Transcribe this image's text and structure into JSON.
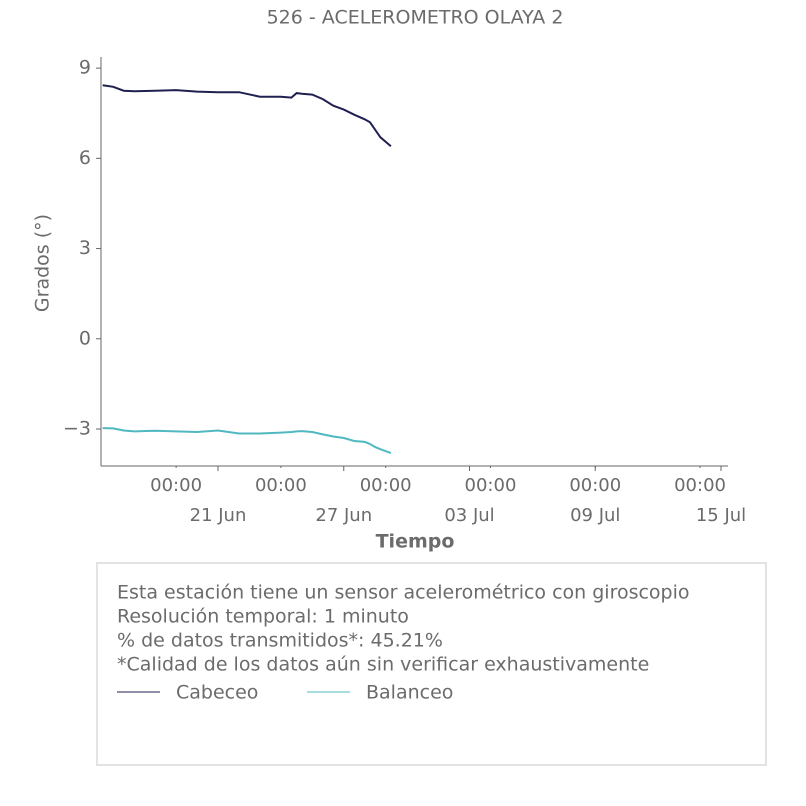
{
  "chart_data": {
    "type": "line",
    "title": "526 - ACELEROMETRO OLAYA 2",
    "x_label": "Tiempo",
    "y_label": "Grados (°)",
    "x": [
      "15 Jun 12:00",
      "16 Jun 00:00",
      "16 Jun 12:00",
      "17 Jun 00:00",
      "18 Jun 00:00",
      "19 Jun 00:00",
      "20 Jun 00:00",
      "21 Jun 00:00",
      "22 Jun 00:00",
      "23 Jun 00:00",
      "24 Jun 00:00",
      "24 Jun 12:00",
      "24 Jun 18:00",
      "25 Jun 00:00",
      "25 Jun 12:00",
      "26 Jun 00:00",
      "26 Jun 12:00",
      "27 Jun 00:00",
      "27 Jun 12:00",
      "28 Jun 00:00",
      "28 Jun 06:00",
      "28 Jun 12:00",
      "28 Jun 18:00",
      "29 Jun 06:00"
    ],
    "series": [
      {
        "name": "Cabeceo",
        "color": "#1f2050",
        "values": [
          8.43,
          8.38,
          8.25,
          8.23,
          8.25,
          8.27,
          8.22,
          8.2,
          8.2,
          8.05,
          8.05,
          8.02,
          8.17,
          8.15,
          8.12,
          7.97,
          7.75,
          7.62,
          7.45,
          7.3,
          7.2,
          6.95,
          6.7,
          6.4
        ]
      },
      {
        "name": "Balanceo",
        "color": "#4fb8c0",
        "values": [
          -2.97,
          -2.98,
          -3.05,
          -3.08,
          -3.06,
          -3.08,
          -3.1,
          -3.05,
          -3.15,
          -3.15,
          -3.12,
          -3.1,
          -3.08,
          -3.07,
          -3.1,
          -3.18,
          -3.25,
          -3.3,
          -3.4,
          -3.43,
          -3.5,
          -3.6,
          -3.67,
          -3.8
        ]
      }
    ],
    "xlim": [
      "15 Jun 10:00",
      "15 Jul 08:00"
    ],
    "xticks": [
      {
        "value": "19 Jun 00:00",
        "label": "00:00"
      },
      {
        "value": "24 Jun 00:00",
        "label": "00:00"
      },
      {
        "value": "29 Jun 00:00",
        "label": "00:00"
      },
      {
        "value": "04 Jul 00:00",
        "label": "00:00"
      },
      {
        "value": "09 Jul 00:00",
        "label": "00:00"
      },
      {
        "value": "14 Jul 00:00",
        "label": "00:00"
      }
    ],
    "xticks_minor": [
      {
        "value": "21 Jun 00:00",
        "label": "21 Jun"
      },
      {
        "value": "27 Jun 00:00",
        "label": "27 Jun"
      },
      {
        "value": "03 Jul 00:00",
        "label": "03 Jul"
      },
      {
        "value": "09 Jul 00:00",
        "label": "09 Jul"
      },
      {
        "value": "15 Jul 00:00",
        "label": "15 Jul"
      }
    ],
    "ylim": [
      -4.23,
      9.37
    ],
    "yticks": [
      9,
      6,
      3,
      0,
      {
        "value": -3,
        "label": "−3"
      }
    ],
    "annotations": [
      "Esta estación tiene un sensor acelerométrico con giroscopio",
      "Resolución temporal: 1 minuto",
      "% de datos transmitidos*: 45.21%",
      "*Calidad de los datos aún sin verificar exhaustivamente"
    ]
  }
}
